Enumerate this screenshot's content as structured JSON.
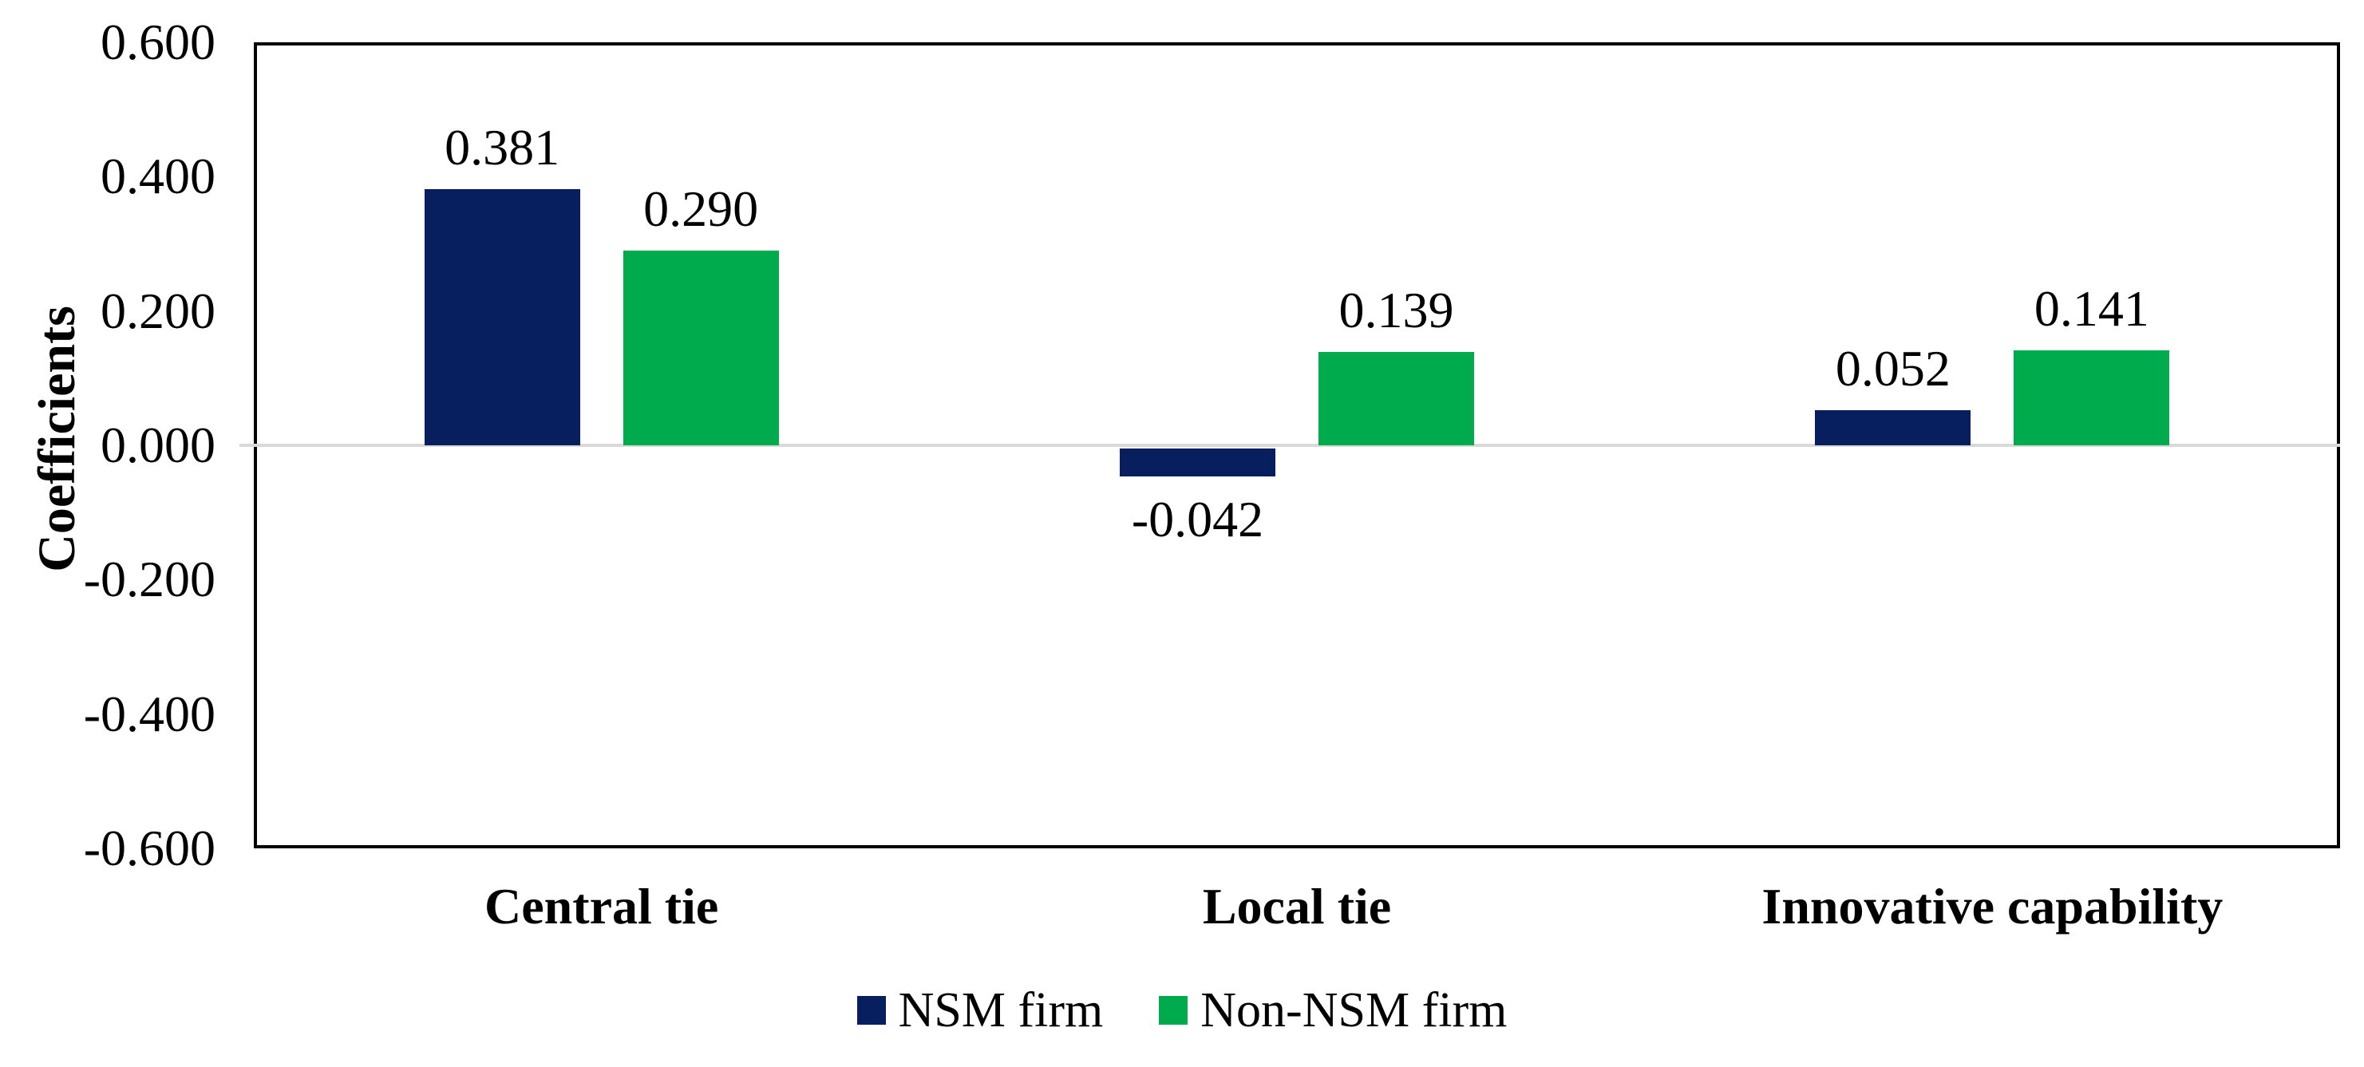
{
  "chart_data": {
    "type": "bar",
    "title": "",
    "xlabel": "",
    "ylabel": "Coefficients",
    "categories": [
      "Central tie",
      "Local tie",
      "Innovative capability"
    ],
    "series": [
      {
        "name": "NSM firm",
        "color": "#071f5e",
        "values": [
          0.381,
          -0.042,
          0.052
        ],
        "labels": [
          "0.381",
          "-0.042",
          "0.052"
        ]
      },
      {
        "name": "Non-NSM firm",
        "color": "#00ab4e",
        "values": [
          0.29,
          0.139,
          0.141
        ],
        "labels": [
          "0.290",
          "0.139",
          "0.141"
        ]
      }
    ],
    "ylim": [
      -0.6,
      0.6
    ],
    "y_tick_values": [
      0.6,
      0.4,
      0.2,
      0.0,
      -0.2,
      -0.4,
      -0.6
    ],
    "y_ticks": [
      "0.600",
      "0.400",
      "0.200",
      "0.000",
      "-0.200",
      "-0.400",
      "-0.600"
    ],
    "grid": "off",
    "legend_position": "bottom",
    "plot_border_color": "#000000",
    "zero_line_color": "#d9d9d9",
    "data_label_color": "#000000"
  }
}
